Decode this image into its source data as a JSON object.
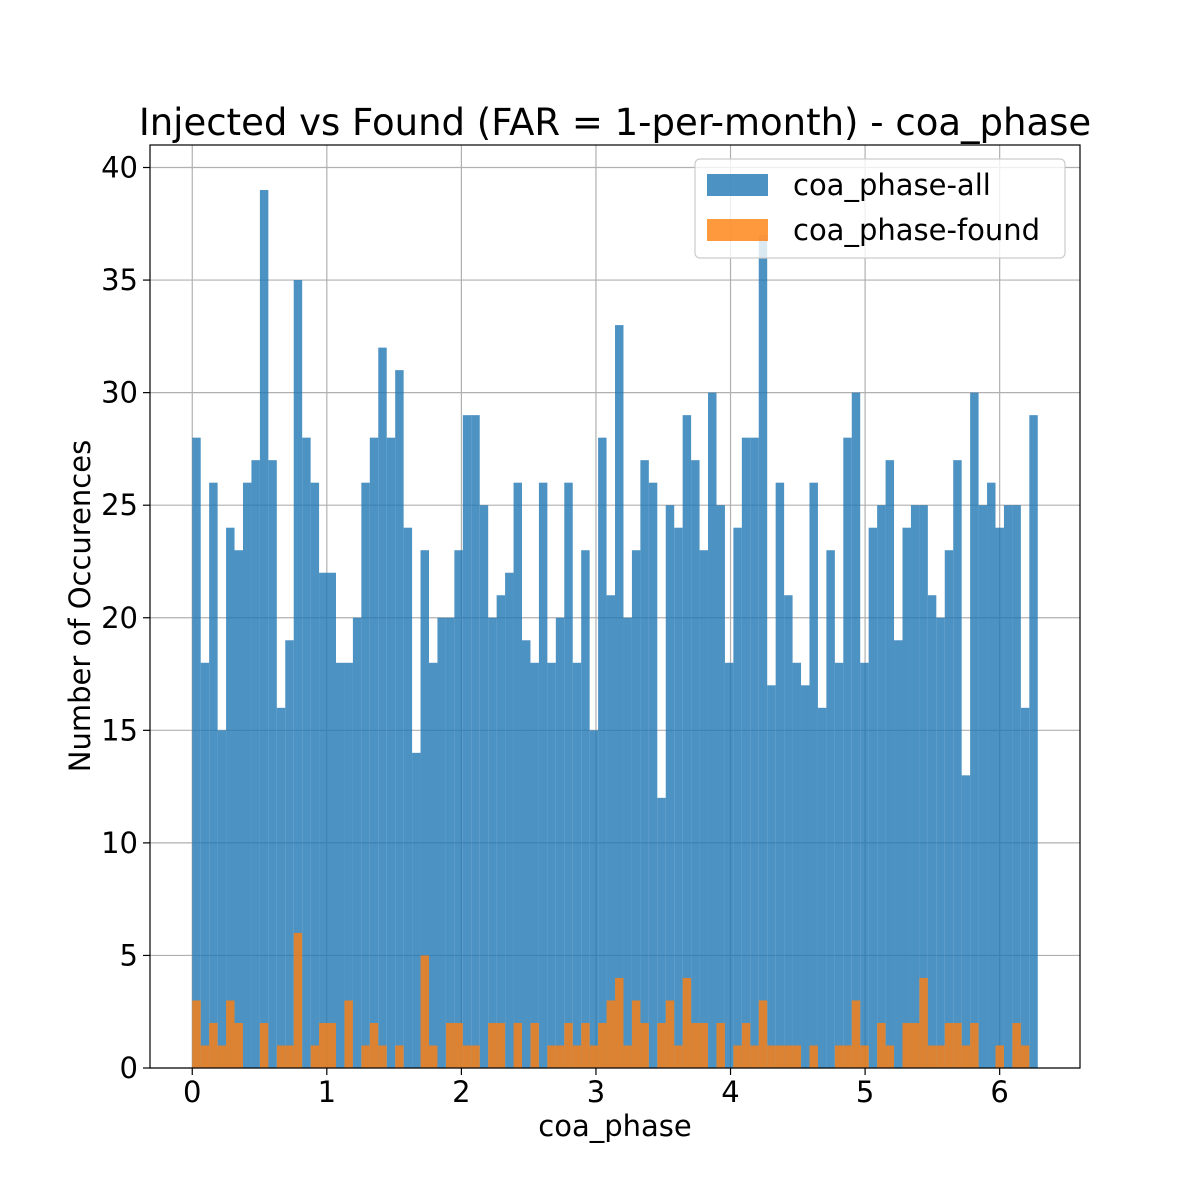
{
  "chart_data": {
    "type": "bar",
    "title": "Injected vs Found (FAR = 1-per-month) - coa_phase",
    "xlabel": "coa_phase",
    "ylabel": "Number of Occurences",
    "xlim": [
      -0.314,
      6.597
    ],
    "ylim": [
      0,
      41
    ],
    "xticks": [
      0,
      1,
      2,
      3,
      4,
      5,
      6
    ],
    "yticks": [
      0,
      5,
      10,
      15,
      20,
      25,
      30,
      35,
      40
    ],
    "grid": true,
    "legend_position": "upper right",
    "bin_start": 0,
    "bin_end": 6.2832,
    "series": [
      {
        "name": "coa_phase-all",
        "color": "#1f77b4",
        "opacity": 0.8,
        "values": [
          28,
          18,
          26,
          15,
          24,
          23,
          26,
          27,
          39,
          27,
          16,
          19,
          35,
          28,
          26,
          22,
          22,
          18,
          18,
          20,
          26,
          28,
          32,
          28,
          31,
          24,
          14,
          23,
          18,
          20,
          20,
          23,
          29,
          29,
          25,
          20,
          21,
          22,
          26,
          19,
          18,
          26,
          18,
          20,
          26,
          18,
          23,
          15,
          28,
          21,
          33,
          20,
          23,
          27,
          26,
          12,
          25,
          24,
          29,
          27,
          23,
          30,
          25,
          18,
          24,
          28,
          28,
          37,
          17,
          26,
          21,
          18,
          17,
          26,
          16,
          23,
          18,
          28,
          30,
          18,
          24,
          25,
          27,
          19,
          24,
          25,
          25,
          21,
          20,
          23,
          27,
          13,
          30,
          25,
          26,
          24,
          25,
          25,
          16,
          29
        ]
      },
      {
        "name": "coa_phase-found",
        "color": "#ff7f0e",
        "opacity": 0.8,
        "values": [
          3,
          1,
          2,
          1,
          3,
          2,
          0,
          0,
          2,
          0,
          1,
          1,
          6,
          0,
          1,
          2,
          2,
          0,
          3,
          0,
          1,
          2,
          1,
          0,
          1,
          0,
          0,
          5,
          1,
          0,
          2,
          2,
          1,
          1,
          0,
          2,
          2,
          0,
          2,
          0,
          2,
          0,
          1,
          1,
          2,
          1,
          2,
          1,
          2,
          3,
          4,
          1,
          3,
          2,
          0,
          2,
          3,
          1,
          4,
          2,
          2,
          0,
          2,
          0,
          1,
          2,
          1,
          3,
          1,
          1,
          1,
          1,
          0,
          1,
          0,
          0,
          1,
          1,
          3,
          1,
          0,
          2,
          1,
          0,
          2,
          2,
          4,
          1,
          1,
          2,
          2,
          1,
          2,
          0,
          0,
          1,
          0,
          2,
          1,
          0
        ]
      }
    ]
  }
}
